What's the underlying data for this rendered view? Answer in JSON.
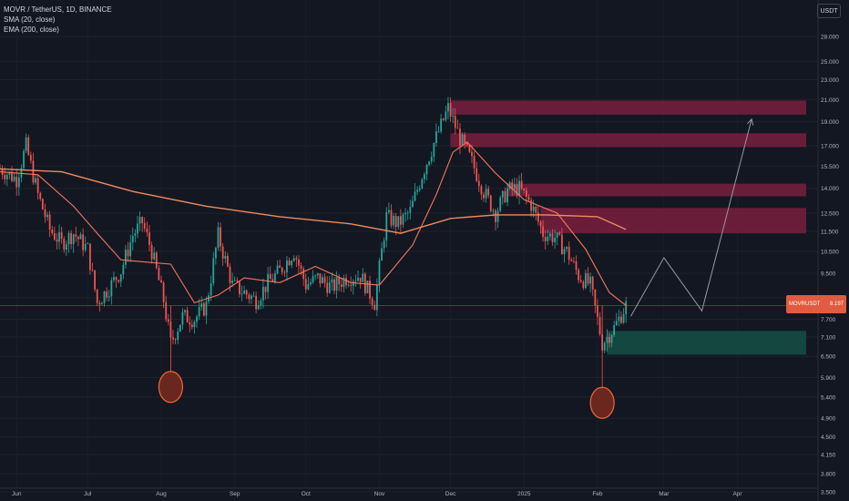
{
  "legend": {
    "symbol": "MOVR / TetherUS, 1D, BINANCE",
    "sma": "SMA (20, close)",
    "ema": "EMA (200, close)"
  },
  "currency_button": "USDT",
  "last_price_tag": {
    "symbol": "MOVRUSDT",
    "price": "8.197"
  },
  "colors": {
    "background": "#131722",
    "up": "#26a69a",
    "down": "#ef5350",
    "sma": "#f5785b",
    "ema": "#f08a5d",
    "supply_zone": "#7a1f3d",
    "demand_zone": "#134a42",
    "projection": "#9598a1"
  },
  "chart_data": {
    "type": "candlestick",
    "x_ticks": [
      "Jun",
      "Jul",
      "Aug",
      "Sep",
      "Oct",
      "Nov",
      "Dec",
      "2025",
      "Feb",
      "Mar",
      "Apr"
    ],
    "y_scale": "log",
    "y_ticks": [
      "28.000",
      "25.000",
      "23.000",
      "21.000",
      "19.000",
      "17.000",
      "15.500",
      "14.000",
      "12.500",
      "11.500",
      "10.500",
      "9.500",
      "8.500",
      "7.700",
      "7.100",
      "6.500",
      "5.900",
      "5.400",
      "4.900",
      "4.500",
      "4.150",
      "3.800",
      "3.500"
    ],
    "ylim": [
      3.5,
      32
    ],
    "close_series": [
      {
        "d": "2024-05-25",
        "v": 15.3
      },
      {
        "d": "2024-06-01",
        "v": 14.6
      },
      {
        "d": "2024-06-05",
        "v": 17.0
      },
      {
        "d": "2024-06-10",
        "v": 13.6
      },
      {
        "d": "2024-06-15",
        "v": 11.6
      },
      {
        "d": "2024-06-20",
        "v": 10.9
      },
      {
        "d": "2024-06-25",
        "v": 11.4
      },
      {
        "d": "2024-07-01",
        "v": 10.6
      },
      {
        "d": "2024-07-05",
        "v": 8.3
      },
      {
        "d": "2024-07-10",
        "v": 8.9
      },
      {
        "d": "2024-07-15",
        "v": 9.6
      },
      {
        "d": "2024-07-20",
        "v": 11.3
      },
      {
        "d": "2024-07-24",
        "v": 12.0
      },
      {
        "d": "2024-07-28",
        "v": 10.5
      },
      {
        "d": "2024-08-02",
        "v": 8.4
      },
      {
        "d": "2024-08-05",
        "v": 6.9
      },
      {
        "d": "2024-08-10",
        "v": 7.8
      },
      {
        "d": "2024-08-15",
        "v": 7.7
      },
      {
        "d": "2024-08-20",
        "v": 8.2
      },
      {
        "d": "2024-08-25",
        "v": 11.3
      },
      {
        "d": "2024-08-31",
        "v": 9.0
      },
      {
        "d": "2024-09-05",
        "v": 8.7
      },
      {
        "d": "2024-09-10",
        "v": 8.4
      },
      {
        "d": "2024-09-15",
        "v": 9.1
      },
      {
        "d": "2024-09-20",
        "v": 9.6
      },
      {
        "d": "2024-09-26",
        "v": 10.5
      },
      {
        "d": "2024-10-01",
        "v": 9.0
      },
      {
        "d": "2024-10-06",
        "v": 9.3
      },
      {
        "d": "2024-10-12",
        "v": 8.9
      },
      {
        "d": "2024-10-18",
        "v": 9.3
      },
      {
        "d": "2024-10-24",
        "v": 9.4
      },
      {
        "d": "2024-10-30",
        "v": 8.3
      },
      {
        "d": "2024-11-04",
        "v": 12.3
      },
      {
        "d": "2024-11-09",
        "v": 11.9
      },
      {
        "d": "2024-11-14",
        "v": 12.6
      },
      {
        "d": "2024-11-19",
        "v": 14.9
      },
      {
        "d": "2024-11-24",
        "v": 17.2
      },
      {
        "d": "2024-11-30",
        "v": 20.2
      },
      {
        "d": "2024-12-05",
        "v": 17.6
      },
      {
        "d": "2024-12-10",
        "v": 15.8
      },
      {
        "d": "2024-12-15",
        "v": 13.8
      },
      {
        "d": "2024-12-20",
        "v": 12.5
      },
      {
        "d": "2024-12-25",
        "v": 13.9
      },
      {
        "d": "2024-12-30",
        "v": 14.0
      },
      {
        "d": "2025-01-04",
        "v": 13.0
      },
      {
        "d": "2025-01-09",
        "v": 11.4
      },
      {
        "d": "2025-01-14",
        "v": 11.2
      },
      {
        "d": "2025-01-19",
        "v": 10.5
      },
      {
        "d": "2025-01-24",
        "v": 9.4
      },
      {
        "d": "2025-01-29",
        "v": 9.0
      },
      {
        "d": "2025-02-03",
        "v": 6.9
      },
      {
        "d": "2025-02-08",
        "v": 7.4
      },
      {
        "d": "2025-02-13",
        "v": 8.2
      }
    ],
    "sma_20": [
      {
        "d": "2024-05-25",
        "v": 15.1
      },
      {
        "d": "2024-06-10",
        "v": 14.9
      },
      {
        "d": "2024-06-25",
        "v": 12.9
      },
      {
        "d": "2024-07-05",
        "v": 11.4
      },
      {
        "d": "2024-07-15",
        "v": 10.1
      },
      {
        "d": "2024-07-25",
        "v": 10.0
      },
      {
        "d": "2024-08-05",
        "v": 9.9
      },
      {
        "d": "2024-08-15",
        "v": 8.3
      },
      {
        "d": "2024-08-25",
        "v": 8.6
      },
      {
        "d": "2024-09-05",
        "v": 9.3
      },
      {
        "d": "2024-09-20",
        "v": 9.1
      },
      {
        "d": "2024-10-05",
        "v": 9.8
      },
      {
        "d": "2024-10-20",
        "v": 9.1
      },
      {
        "d": "2024-11-01",
        "v": 9.0
      },
      {
        "d": "2024-11-15",
        "v": 10.8
      },
      {
        "d": "2024-11-25",
        "v": 13.6
      },
      {
        "d": "2024-12-02",
        "v": 16.5
      },
      {
        "d": "2024-12-08",
        "v": 17.3
      },
      {
        "d": "2024-12-20",
        "v": 15.0
      },
      {
        "d": "2025-01-01",
        "v": 13.3
      },
      {
        "d": "2025-01-15",
        "v": 12.5
      },
      {
        "d": "2025-01-27",
        "v": 10.6
      },
      {
        "d": "2025-02-06",
        "v": 8.7
      },
      {
        "d": "2025-02-13",
        "v": 8.2
      }
    ],
    "ema_200": [
      {
        "d": "2024-05-25",
        "v": 15.3
      },
      {
        "d": "2024-06-20",
        "v": 15.1
      },
      {
        "d": "2024-07-20",
        "v": 13.8
      },
      {
        "d": "2024-08-20",
        "v": 12.9
      },
      {
        "d": "2024-09-20",
        "v": 12.3
      },
      {
        "d": "2024-10-20",
        "v": 11.9
      },
      {
        "d": "2024-11-10",
        "v": 11.4
      },
      {
        "d": "2024-12-01",
        "v": 12.2
      },
      {
        "d": "2024-12-20",
        "v": 12.4
      },
      {
        "d": "2025-01-10",
        "v": 12.4
      },
      {
        "d": "2025-02-01",
        "v": 12.3
      },
      {
        "d": "2025-02-13",
        "v": 11.6
      }
    ],
    "supply_zones": [
      {
        "from": "2024-12-01",
        "to": "2025-04-30",
        "low": 19.6,
        "high": 20.9
      },
      {
        "from": "2024-12-01",
        "to": "2025-04-30",
        "low": 16.9,
        "high": 18.0
      },
      {
        "from": "2024-12-25",
        "to": "2025-04-30",
        "low": 13.5,
        "high": 14.3
      },
      {
        "from": "2025-01-08",
        "to": "2025-04-30",
        "low": 11.4,
        "high": 12.8
      }
    ],
    "demand_zone": {
      "from": "2025-02-05",
      "to": "2025-04-30",
      "low": 6.55,
      "high": 7.3
    },
    "projection_path": [
      {
        "d": "2025-02-15",
        "v": 7.8
      },
      {
        "d": "2025-03-01",
        "v": 10.2
      },
      {
        "d": "2025-03-17",
        "v": 8.0
      },
      {
        "d": "2025-04-07",
        "v": 19.2
      }
    ],
    "marked_lows": [
      {
        "d": "2024-08-05",
        "v": 5.7
      },
      {
        "d": "2025-02-03",
        "v": 5.3
      }
    ],
    "last_price": 8.197
  }
}
